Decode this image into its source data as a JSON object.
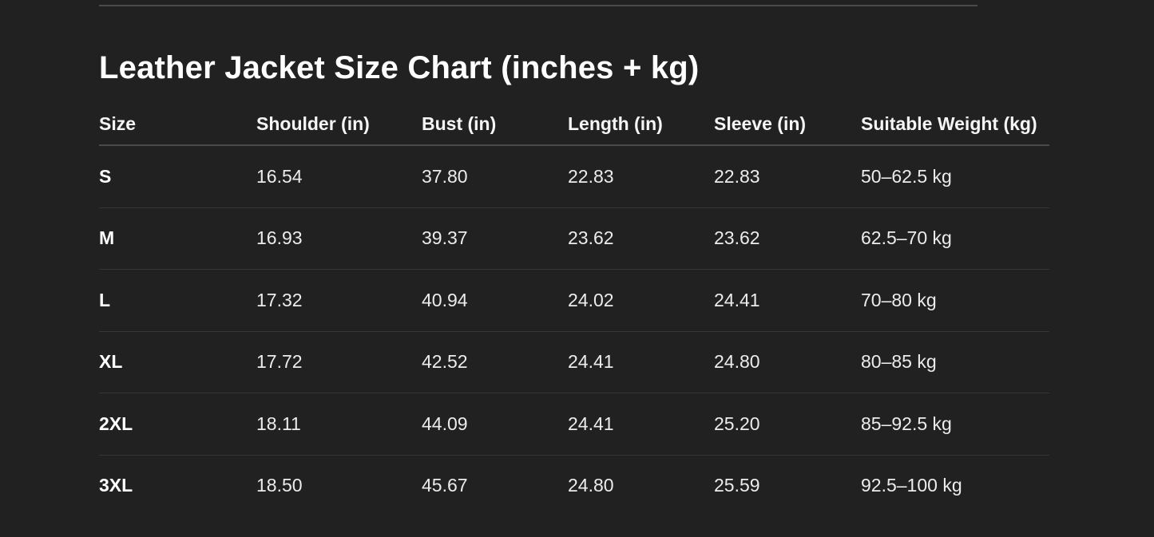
{
  "title": "Leather Jacket Size Chart (inches + kg)",
  "table": {
    "headers": [
      "Size",
      "Shoulder (in)",
      "Bust (in)",
      "Length (in)",
      "Sleeve (in)",
      "Suitable Weight (kg)"
    ],
    "rows": [
      [
        "S",
        "16.54",
        "37.80",
        "22.83",
        "22.83",
        "50–62.5 kg"
      ],
      [
        "M",
        "16.93",
        "39.37",
        "23.62",
        "23.62",
        "62.5–70 kg"
      ],
      [
        "L",
        "17.32",
        "40.94",
        "24.02",
        "24.41",
        "70–80 kg"
      ],
      [
        "XL",
        "17.72",
        "42.52",
        "24.41",
        "24.80",
        "80–85 kg"
      ],
      [
        "2XL",
        "18.11",
        "44.09",
        "24.41",
        "25.20",
        "85–92.5 kg"
      ],
      [
        "3XL",
        "18.50",
        "45.67",
        "24.80",
        "25.59",
        "92.5–100 kg"
      ]
    ]
  }
}
